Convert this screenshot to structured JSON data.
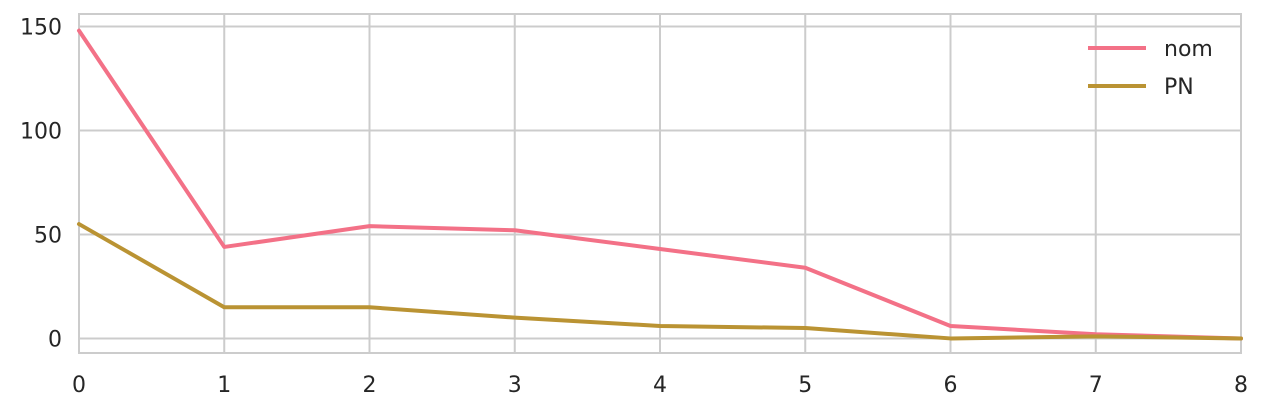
{
  "chart_data": {
    "type": "line",
    "title": "",
    "xlabel": "",
    "ylabel": "",
    "x": [
      0,
      1,
      2,
      3,
      4,
      5,
      6,
      7,
      8
    ],
    "xlim": [
      0,
      8
    ],
    "ylim": [
      -7,
      156
    ],
    "xticks": [
      0,
      1,
      2,
      3,
      4,
      5,
      6,
      7,
      8
    ],
    "yticks": [
      0,
      50,
      100,
      150
    ],
    "xtick_labels": [
      "0",
      "1",
      "2",
      "3",
      "4",
      "5",
      "6",
      "7",
      "8"
    ],
    "ytick_labels": [
      "0",
      "50",
      "100",
      "150"
    ],
    "grid": true,
    "legend_position": "top-right",
    "series": [
      {
        "name": "nom",
        "color": "#f37187",
        "values": [
          148,
          44,
          54,
          52,
          43,
          34,
          6,
          2,
          0
        ]
      },
      {
        "name": "PN",
        "color": "#ba9333",
        "values": [
          55,
          15,
          15,
          10,
          6,
          5,
          0,
          1,
          0
        ]
      }
    ]
  }
}
